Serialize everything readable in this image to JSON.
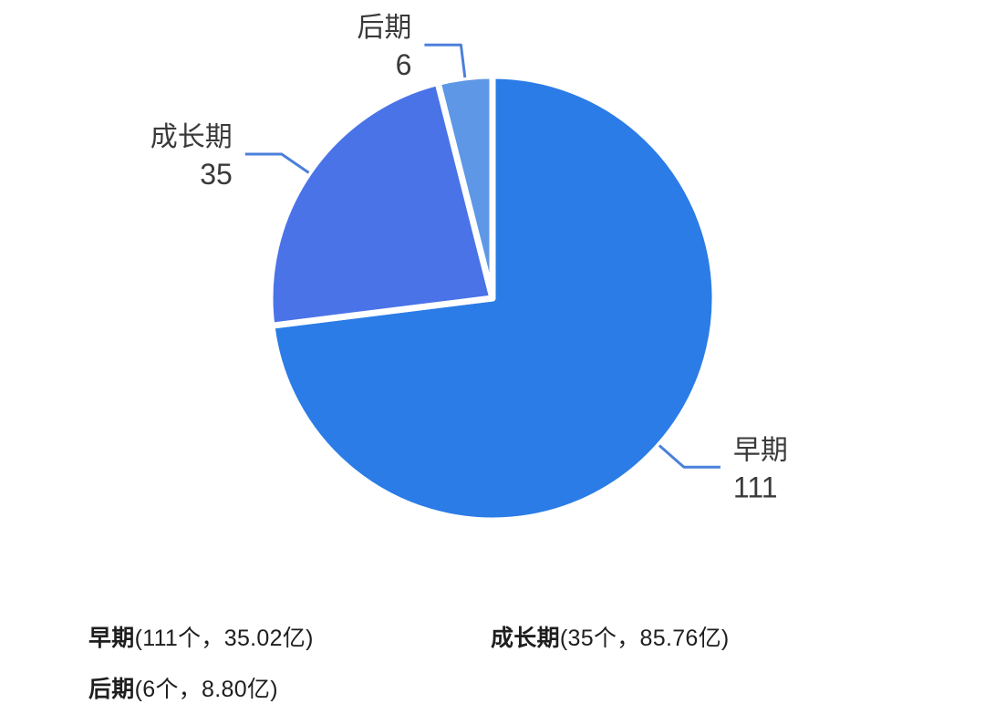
{
  "chart_data": {
    "type": "pie",
    "title": "",
    "total": 152,
    "start_angle": 0,
    "clockwise": true,
    "legend_position": "bottom",
    "label_line_color": "#4C80DB",
    "slices": [
      {
        "name": "早期",
        "value": 111,
        "count_label": "111个",
        "amount_label": "35.02亿",
        "color": "#2B7CE6"
      },
      {
        "name": "成长期",
        "value": 35,
        "count_label": "35个",
        "amount_label": "85.76亿",
        "color": "#4A73E8"
      },
      {
        "name": "后期",
        "value": 6,
        "count_label": "6个",
        "amount_label": "8.80亿",
        "color": "#5E97E6"
      }
    ]
  },
  "legend": {
    "rows": [
      [
        {
          "name": "早期",
          "detail": "(111个，35.02亿)"
        },
        {
          "name": "成长期",
          "detail": "(35个，85.76亿)"
        }
      ],
      [
        {
          "name": "后期",
          "detail": "(6个，8.80亿)"
        }
      ]
    ]
  },
  "colors": {
    "background": "#FFFFFF",
    "slice_label_text": "#3A3A3A",
    "legend_text": "#1E1E1E"
  }
}
